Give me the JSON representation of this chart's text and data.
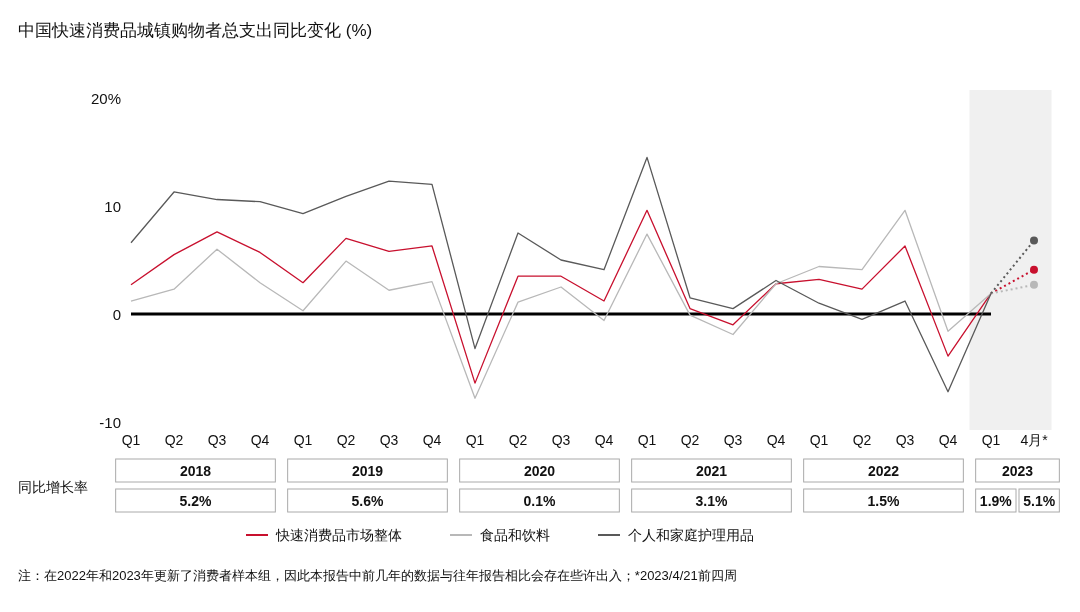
{
  "chart_data": [
    {
      "type": "line",
      "title": "中国快速消费品城镇购物者总支出同比变化 (%)",
      "categories": [
        "Q1",
        "Q2",
        "Q3",
        "Q4",
        "Q1",
        "Q2",
        "Q3",
        "Q4",
        "Q1",
        "Q2",
        "Q3",
        "Q4",
        "Q1",
        "Q2",
        "Q3",
        "Q4",
        "Q1",
        "Q2",
        "Q3",
        "Q4",
        "Q1",
        "4月*"
      ],
      "series": [
        {
          "name": "快速消费品市场整体",
          "color": "#c8102e",
          "values": [
            2.7,
            5.5,
            7.6,
            5.7,
            2.9,
            7.0,
            5.8,
            6.3,
            -6.4,
            3.5,
            3.5,
            1.2,
            9.6,
            0.5,
            -1.0,
            2.8,
            3.2,
            2.3,
            6.3,
            -3.9,
            1.9,
            null
          ]
        },
        {
          "name": "食品和饮料",
          "color": "#b8b8b8",
          "values": [
            1.2,
            2.3,
            6.0,
            2.9,
            0.3,
            4.9,
            2.2,
            3.0,
            -7.8,
            1.1,
            2.5,
            -0.6,
            7.4,
            -0.1,
            -1.9,
            2.8,
            4.4,
            4.1,
            9.6,
            -1.6,
            1.9,
            null
          ]
        },
        {
          "name": "个人和家庭护理用品",
          "color": "#595959",
          "values": [
            6.6,
            11.3,
            10.6,
            10.4,
            9.3,
            10.9,
            12.3,
            12.0,
            -3.2,
            7.5,
            5.0,
            4.1,
            14.5,
            1.5,
            0.5,
            3.1,
            1.0,
            -0.5,
            1.2,
            -7.2,
            1.9,
            null
          ]
        },
        {
          "color": "#c8102e",
          "line_style": "dotted",
          "marker": "circle",
          "values": [
            null,
            null,
            null,
            null,
            null,
            null,
            null,
            null,
            null,
            null,
            null,
            null,
            null,
            null,
            null,
            null,
            null,
            null,
            null,
            null,
            1.9,
            4.1
          ]
        },
        {
          "color": "#b8b8b8",
          "line_style": "dotted",
          "marker": "circle",
          "values": [
            null,
            null,
            null,
            null,
            null,
            null,
            null,
            null,
            null,
            null,
            null,
            null,
            null,
            null,
            null,
            null,
            null,
            null,
            null,
            null,
            1.9,
            2.7
          ]
        },
        {
          "color": "#595959",
          "line_style": "dotted",
          "marker": "circle",
          "values": [
            null,
            null,
            null,
            null,
            null,
            null,
            null,
            null,
            null,
            null,
            null,
            null,
            null,
            null,
            null,
            null,
            null,
            null,
            null,
            null,
            1.9,
            6.8
          ]
        }
      ],
      "ylim": [
        -10,
        20
      ],
      "yticks": [
        -10,
        0,
        10,
        {
          "value": 20,
          "label": "20%"
        }
      ],
      "grid": false,
      "legend": "bottom",
      "line_style": "solid",
      "ref_lines": [
        {
          "axis": "y",
          "value": 0,
          "color": "#000000"
        }
      ],
      "annotations": [
        "同比增长率",
        "2018",
        "2019",
        "2020",
        "2021",
        "2022",
        "2023",
        "5.2%",
        "5.6%",
        "0.1%",
        "3.1%",
        "1.5%",
        "1.9%",
        "5.1%",
        "注：在2022年和2023年更新了消费者样本组，因此本报告中前几年的数据与往年报告相比会存在些许出入；*2023/4/21前四周"
      ]
    }
  ]
}
